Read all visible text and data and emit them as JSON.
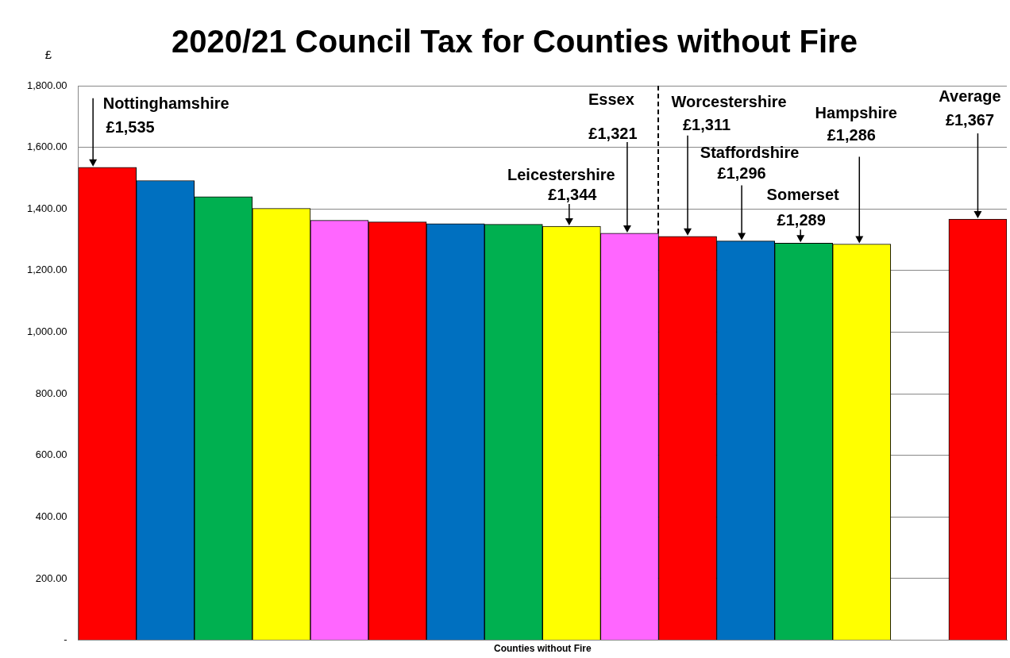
{
  "chart_data": {
    "type": "bar",
    "title": "2020/21 Council Tax for Counties without Fire",
    "xlabel": "Counties without Fire",
    "ylabel": "£",
    "categories": [
      null,
      null,
      null,
      null,
      null,
      null,
      null,
      null,
      null,
      null,
      null,
      null,
      null,
      null,
      null,
      null
    ],
    "annotations": [
      "Nottinghamshire",
      "Leicestershire",
      "Essex",
      "Worcestershire",
      "Staffordshire",
      "Somerset",
      "Hampshire",
      "Average"
    ],
    "values": [
      1535,
      1492,
      1440,
      1402,
      1363,
      1358,
      1352,
      1350,
      1344,
      1321,
      1311,
      1296,
      1289,
      1286,
      null,
      1367
    ],
    "value_labels": [
      "£1,535",
      null,
      null,
      null,
      null,
      null,
      null,
      null,
      "£1,344",
      "£1,321",
      "£1,311",
      "£1,296",
      "£1,289",
      "£1,286",
      null,
      "£1,367"
    ],
    "colors": [
      "#ff0000",
      "#0070c0",
      "#00b050",
      "#ffff00",
      "#ff66ff",
      "#ff0000",
      "#0070c0",
      "#00b050",
      "#ffff00",
      "#ff66ff",
      "#ff0000",
      "#0070c0",
      "#00b050",
      "#ffff00",
      "#ffffff",
      "#ff0000"
    ],
    "ylim": [
      0,
      1800
    ],
    "yticks": [
      {
        "value": 0,
        "label": "-"
      },
      {
        "value": 200,
        "label": "200.00"
      },
      {
        "value": 400,
        "label": "400.00"
      },
      {
        "value": 600,
        "label": "600.00"
      },
      {
        "value": 800,
        "label": "800.00"
      },
      {
        "value": 1000,
        "label": "1,000.00"
      },
      {
        "value": 1200,
        "label": "1,200.00"
      },
      {
        "value": 1400,
        "label": "1,400.00"
      },
      {
        "value": 1600,
        "label": "1,600.00"
      },
      {
        "value": 1800,
        "label": "1,800.00"
      }
    ],
    "grid": "y",
    "legend": false
  }
}
